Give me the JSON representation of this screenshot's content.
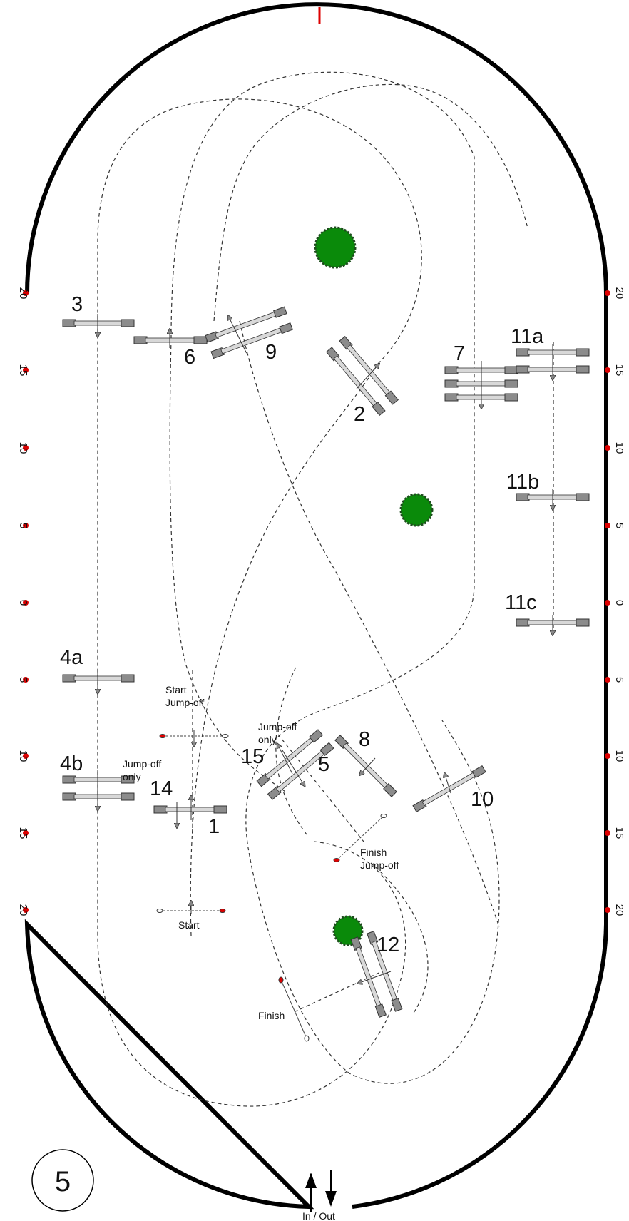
{
  "arena": {
    "scale_left": [
      "20",
      "15",
      "10",
      "5",
      "0",
      "5",
      "10",
      "15",
      "20"
    ],
    "scale_right": [
      "20",
      "15",
      "10",
      "5",
      "0",
      "5",
      "10",
      "15",
      "20"
    ],
    "entrance_label": "In / Out"
  },
  "round_badge": "5",
  "obstacles": [
    {
      "id": "1",
      "label": "1",
      "kind": "vertical"
    },
    {
      "id": "2",
      "label": "2",
      "kind": "oxer"
    },
    {
      "id": "3",
      "label": "3",
      "kind": "vertical"
    },
    {
      "id": "4a",
      "label": "4a",
      "kind": "vertical"
    },
    {
      "id": "4b",
      "label": "4b",
      "kind": "oxer"
    },
    {
      "id": "5",
      "label": "5",
      "kind": "oxer"
    },
    {
      "id": "6",
      "label": "6",
      "kind": "vertical"
    },
    {
      "id": "7",
      "label": "7",
      "kind": "triple-bar"
    },
    {
      "id": "8",
      "label": "8",
      "kind": "vertical"
    },
    {
      "id": "9",
      "label": "9",
      "kind": "vertical"
    },
    {
      "id": "10",
      "label": "10",
      "kind": "oxer"
    },
    {
      "id": "11a",
      "label": "11a",
      "kind": "oxer"
    },
    {
      "id": "11b",
      "label": "11b",
      "kind": "vertical"
    },
    {
      "id": "11c",
      "label": "11c",
      "kind": "vertical"
    },
    {
      "id": "12",
      "label": "12",
      "kind": "oxer"
    },
    {
      "id": "14",
      "label": "14",
      "kind": "vertical"
    },
    {
      "id": "15",
      "label": "15",
      "kind": "oxer"
    }
  ],
  "annotations": {
    "start": "Start",
    "finish": "Finish",
    "start_jumpoff_line1": "Start",
    "start_jumpoff_line2": "Jump-off",
    "finish_jumpoff_line1": "Finish",
    "finish_jumpoff_line2": "Jump-off",
    "jumpoff_only_a_line1": "Jump-off",
    "jumpoff_only_a_line2": "only",
    "jumpoff_only_b_line1": "Jump-off",
    "jumpoff_only_b_line2": "only"
  },
  "colors": {
    "border": "#000000",
    "marker": "#dd0000",
    "tree": "#0a8a0a",
    "tree_edge": "#1f4d1f",
    "stand": "#8c8c8c",
    "pole": "#d8d8d8"
  }
}
